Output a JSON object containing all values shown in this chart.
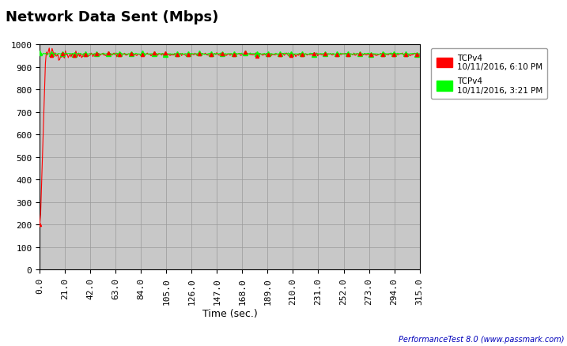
{
  "title": "Network Data Sent (Mbps)",
  "xlabel": "Time (sec.)",
  "ylabel": "",
  "xlim": [
    0,
    315
  ],
  "ylim": [
    0,
    1000
  ],
  "xticks": [
    0.0,
    21.0,
    42.0,
    63.0,
    84.0,
    105.0,
    126.0,
    147.0,
    168.0,
    189.0,
    210.0,
    231.0,
    252.0,
    273.0,
    294.0,
    315.0
  ],
  "yticks": [
    0,
    100,
    200,
    300,
    400,
    500,
    600,
    700,
    800,
    900,
    1000
  ],
  "plot_bg_color": "#c8c8c8",
  "legend1_label1": "TCPv4",
  "legend1_label2": "10/11/2016, 6:10 PM",
  "legend2_label1": "TCPv4",
  "legend2_label2": "10/11/2016, 3:21 PM",
  "red_color": "#ff0000",
  "green_color": "#00ff00",
  "watermark": "PerformanceTest 8.0 (www.passmark.com)",
  "steady_value_red": 955,
  "steady_value_green": 958
}
